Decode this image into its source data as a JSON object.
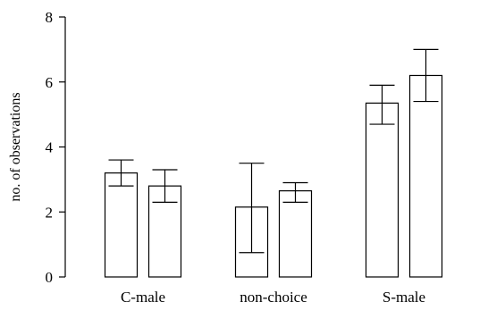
{
  "chart_data": {
    "type": "bar",
    "title": "",
    "xlabel": "",
    "ylabel": "no. of observations",
    "ylim": [
      0,
      8
    ],
    "yticks": [
      0,
      2,
      4,
      6,
      8
    ],
    "grid": false,
    "error_bars": true,
    "categories": [
      "C-male",
      "non-choice",
      "S-male"
    ],
    "series": [
      {
        "values": [
          3.2,
          2.15,
          5.35
        ],
        "error_low": [
          2.8,
          0.75,
          4.7
        ],
        "error_high": [
          3.6,
          3.5,
          5.9
        ]
      },
      {
        "values": [
          2.8,
          2.65,
          6.2
        ],
        "error_low": [
          2.3,
          2.3,
          5.4
        ],
        "error_high": [
          3.3,
          2.9,
          7.0
        ]
      }
    ],
    "colors": {
      "bar_fill": "#ffffff",
      "bar_stroke": "#000000",
      "axis": "#000000"
    }
  }
}
